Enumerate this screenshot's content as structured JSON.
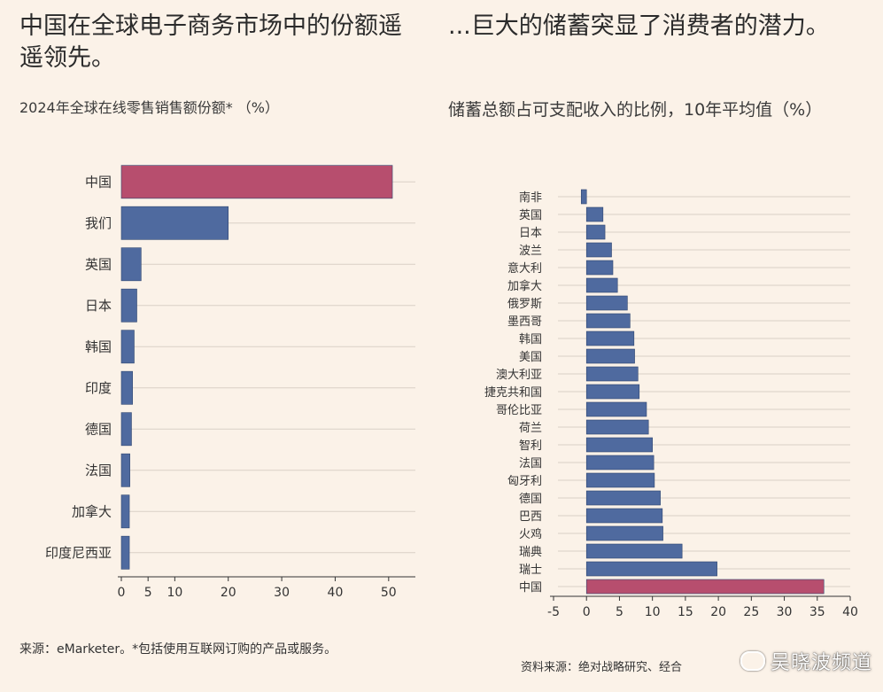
{
  "left": {
    "headline": "中国在全球电子商务市场中的份额遥遥领先。",
    "subtitle": "2024年全球在线零售销售额份额* （%）",
    "source": "来源：eMarketer。*包括使用互联网订购的产品或服务。",
    "chart_data": {
      "type": "bar",
      "orientation": "horizontal",
      "title": "2024年全球在线零售销售额份额* （%）",
      "categories": [
        "中国",
        "我们",
        "英国",
        "日本",
        "韩国",
        "印度",
        "德国",
        "法国",
        "加拿大",
        "印度尼西亚"
      ],
      "values": [
        50.7,
        20.0,
        3.7,
        2.9,
        2.4,
        2.1,
        1.9,
        1.6,
        1.5,
        1.5
      ],
      "xticks": [
        0,
        5,
        10,
        20,
        30,
        40,
        50
      ],
      "xlim": [
        0,
        55
      ],
      "highlight_index": 0,
      "highlight_color": "#b74e6e",
      "bar_color": "#4f6a9f",
      "grid": "horizontal"
    }
  },
  "right": {
    "headline": "...巨大的储蓄突显了消费者的潜力。",
    "subtitle": "储蓄总额占可支配收入的比例，10年平均值（%）",
    "source": "资料来源：绝对战略研究、经合",
    "chart_data": {
      "type": "bar",
      "orientation": "horizontal",
      "title": "储蓄总额占可支配收入的比例，10年平均值（%）",
      "categories": [
        "南非",
        "英国",
        "日本",
        "波兰",
        "意大利",
        "加拿大",
        "俄罗斯",
        "墨西哥",
        "韩国",
        "美国",
        "澳大利亚",
        "捷克共和国",
        "哥伦比亚",
        "荷兰",
        "智利",
        "法国",
        "匈牙利",
        "德国",
        "巴西",
        "火鸡",
        "瑞典",
        "瑞士",
        "中国"
      ],
      "values": [
        -0.8,
        2.5,
        2.8,
        3.8,
        4.0,
        4.7,
        6.2,
        6.6,
        7.2,
        7.3,
        7.8,
        8.0,
        9.1,
        9.4,
        10.0,
        10.2,
        10.3,
        11.2,
        11.5,
        11.6,
        14.5,
        19.8,
        36.0
      ],
      "xticks": [
        -5,
        0,
        5,
        10,
        15,
        20,
        25,
        30,
        35,
        40
      ],
      "xlim": [
        -5,
        40
      ],
      "highlight_index": 22,
      "highlight_color": "#b74e6e",
      "bar_color": "#4f6a9f",
      "grid": "horizontal"
    }
  },
  "watermark": "吴晓波频道"
}
